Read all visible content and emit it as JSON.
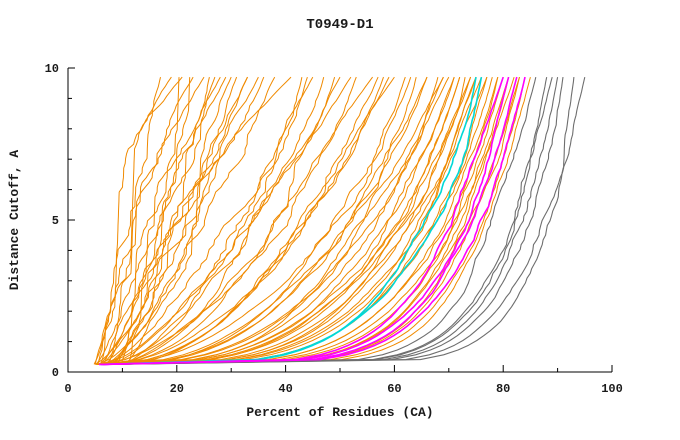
{
  "chart_data": {
    "type": "line",
    "title": "T0949-D1",
    "xlabel": "Percent of Residues (CA)",
    "ylabel": "Distance Cutoff, A",
    "xlim": [
      0,
      100
    ],
    "ylim": [
      0,
      10
    ],
    "x_major_ticks": [
      0,
      20,
      40,
      60,
      80,
      100
    ],
    "x_minor_ticks": [
      10,
      30,
      50,
      70,
      90
    ],
    "y_major_ticks": [
      0,
      5,
      10
    ],
    "y_minor_ticks": [
      1,
      2,
      3,
      4,
      6,
      7,
      8,
      9
    ],
    "grid": false,
    "legend": "none",
    "curve_model": {
      "description": "Each curve gives distance cutoff (A) vs percent of CA residues fit. Curve x(y) = x0 + (top_x - x0) * t^p + seeded wiggle, with t = (y - y_range[0]) / (y_range[1] - y_range[0]).",
      "point_format": [
        "top_x",
        "p",
        "x0",
        "wiggle",
        "seed"
      ],
      "y_range": [
        0.25,
        9.7
      ]
    },
    "groups": [
      {
        "name": "predictions-orange",
        "color": "#F08A00",
        "stroke_width": 1.0,
        "curves": [
          [
            17,
            1.0,
            5.0,
            3.0,
            11
          ],
          [
            19,
            0.96,
            5.5,
            3.2,
            12
          ],
          [
            21,
            0.94,
            6.0,
            2.8,
            13
          ],
          [
            23,
            0.91,
            4.8,
            3.0,
            14
          ],
          [
            25,
            0.89,
            6.5,
            3.3,
            15
          ],
          [
            27,
            0.86,
            5.2,
            2.9,
            16
          ],
          [
            29,
            0.84,
            7.0,
            3.1,
            17
          ],
          [
            31,
            0.81,
            5.8,
            2.7,
            18
          ],
          [
            33,
            0.79,
            6.2,
            3.0,
            19
          ],
          [
            35,
            0.76,
            5.0,
            2.8,
            20
          ],
          [
            38,
            0.73,
            6.8,
            2.6,
            21
          ],
          [
            41,
            0.69,
            5.4,
            2.5,
            22
          ],
          [
            44,
            0.65,
            6.0,
            2.4,
            23
          ],
          [
            47,
            0.61,
            5.6,
            2.3,
            24
          ],
          [
            50,
            0.58,
            6.4,
            2.2,
            25
          ],
          [
            53,
            0.54,
            5.2,
            2.1,
            26
          ],
          [
            56,
            0.5,
            6.6,
            2.0,
            27
          ],
          [
            58,
            0.48,
            5.8,
            1.9,
            28
          ],
          [
            60,
            0.45,
            6.1,
            1.8,
            29
          ],
          [
            62,
            0.43,
            5.5,
            1.8,
            30
          ],
          [
            64,
            0.4,
            6.3,
            1.7,
            31
          ],
          [
            66,
            0.38,
            5.7,
            1.6,
            32
          ],
          [
            68,
            0.35,
            6.0,
            1.5,
            33
          ],
          [
            69,
            0.34,
            5.3,
            1.5,
            34
          ],
          [
            70,
            0.33,
            6.5,
            1.4,
            35
          ],
          [
            71,
            0.31,
            5.9,
            1.4,
            36
          ],
          [
            72,
            0.3,
            6.2,
            1.3,
            37
          ],
          [
            73,
            0.29,
            5.5,
            1.3,
            38
          ],
          [
            74,
            0.28,
            6.7,
            1.2,
            39
          ],
          [
            75,
            0.26,
            5.1,
            1.2,
            40
          ],
          [
            76,
            0.25,
            6.0,
            1.1,
            41
          ],
          [
            77,
            0.24,
            5.6,
            1.1,
            42
          ],
          [
            78,
            0.23,
            6.3,
            1.0,
            43
          ],
          [
            79,
            0.21,
            5.8,
            1.0,
            44
          ],
          [
            80,
            0.2,
            6.1,
            1.0,
            45
          ],
          [
            81,
            0.19,
            5.4,
            0.9,
            46
          ],
          [
            82,
            0.18,
            6.6,
            0.9,
            47
          ],
          [
            83,
            0.16,
            5.9,
            0.9,
            48
          ],
          [
            84,
            0.15,
            6.2,
            0.8,
            49
          ],
          [
            85,
            0.14,
            5.5,
            0.8,
            50
          ],
          [
            36,
            0.77,
            8.0,
            3.2,
            51
          ],
          [
            28,
            0.87,
            9.0,
            3.4,
            52
          ],
          [
            22,
            0.95,
            7.5,
            3.1,
            53
          ],
          [
            45,
            0.64,
            7.2,
            2.5,
            54
          ],
          [
            52,
            0.56,
            7.8,
            2.2,
            55
          ],
          [
            59,
            0.47,
            7.0,
            1.9,
            56
          ],
          [
            66,
            0.39,
            7.4,
            1.6,
            57
          ],
          [
            71,
            0.32,
            7.1,
            1.4,
            58
          ],
          [
            74,
            0.27,
            7.6,
            1.2,
            59
          ],
          [
            77,
            0.23,
            7.3,
            1.1,
            60
          ],
          [
            79,
            0.22,
            8.2,
            1.0,
            61
          ],
          [
            81,
            0.18,
            7.9,
            0.9,
            62
          ],
          [
            83,
            0.17,
            8.4,
            0.9,
            63
          ],
          [
            75,
            0.27,
            9.0,
            1.2,
            64
          ],
          [
            72,
            0.31,
            8.6,
            1.3,
            65
          ],
          [
            69,
            0.35,
            9.2,
            1.5,
            66
          ],
          [
            63,
            0.41,
            8.8,
            1.7,
            67
          ],
          [
            57,
            0.49,
            9.4,
            2.0,
            68
          ],
          [
            49,
            0.59,
            8.5,
            2.2,
            69
          ],
          [
            43,
            0.66,
            9.6,
            2.6,
            70
          ],
          [
            33,
            0.8,
            10.5,
            3.0,
            71
          ],
          [
            26,
            0.88,
            11.0,
            3.3,
            72
          ],
          [
            20,
            0.97,
            9.8,
            3.2,
            73
          ],
          [
            30,
            0.83,
            8.2,
            3.1,
            74
          ]
        ]
      },
      {
        "name": "predictions-gray",
        "color": "#6E6E6E",
        "stroke_width": 1.1,
        "curves": [
          [
            86,
            0.13,
            7.0,
            1.2,
            81
          ],
          [
            88,
            0.12,
            7.5,
            1.2,
            82
          ],
          [
            90,
            0.12,
            8.0,
            1.1,
            83
          ],
          [
            91,
            0.115,
            7.2,
            1.1,
            84
          ],
          [
            93,
            0.11,
            7.8,
            1.0,
            85
          ],
          [
            95,
            0.105,
            8.5,
            1.0,
            86
          ],
          [
            89,
            0.125,
            6.8,
            1.1,
            87
          ]
        ]
      },
      {
        "name": "highlight-cyan",
        "color": "#00D8D8",
        "stroke_width": 1.6,
        "curves": [
          [
            75,
            0.21,
            6.0,
            0.9,
            91
          ],
          [
            76,
            0.22,
            6.4,
            0.9,
            92
          ]
        ]
      },
      {
        "name": "highlight-magenta",
        "color": "#FF00FF",
        "stroke_width": 1.6,
        "curves": [
          [
            81,
            0.17,
            6.0,
            0.8,
            95
          ],
          [
            82.5,
            0.165,
            6.3,
            0.8,
            96
          ],
          [
            84,
            0.16,
            5.7,
            0.8,
            97
          ],
          [
            80,
            0.18,
            6.6,
            0.8,
            98
          ]
        ]
      }
    ]
  }
}
